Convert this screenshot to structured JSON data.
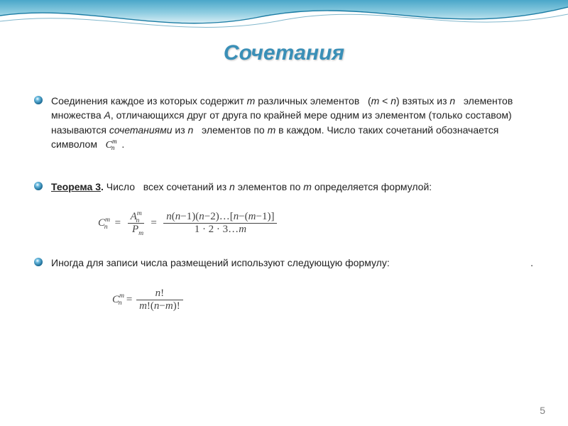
{
  "title": {
    "text": "Сочетания",
    "color": "#3a8fb7",
    "fontsize": 30
  },
  "bullets": [
    {
      "html": "Соединения каждое из которых содержит <span class='ital'>m</span> различных элементов &nbsp;&nbsp;(<span class='ital'>m</span> &lt; <span class='ital'>n</span>) взятых из <span class='ital'>n</span> &nbsp;&nbsp;элементов множества <span class='ital'>A</span>, отличающихся друг от друга по крайней мере одним из элементом (только составом) называются <span class='ital'>сочетаниями</span> из <span class='ital'>n</span> &nbsp;&nbsp;элементов по <span class='ital'>m</span> в каждом. Число таких сочетаний обозначается символом &nbsp;&nbsp;<span class='formula-inline'><span class='subsup'><span class='base'>C</span><span class='sup'>m</span><span class='sub'>n</span></span></span>&nbsp;&nbsp;."
    },
    {
      "html": "<span class='underline'><b>Теорема 3</b></span><b>.</b> Число &nbsp;&nbsp;всех сочетаний из <span class='ital'>n</span> элементов по <span class='ital'>m</span> определяется формулой:"
    },
    {
      "html": "Иногда для записи числа размещений используют следующую формулу:&nbsp;&nbsp;&nbsp;&nbsp;&nbsp;&nbsp;&nbsp;&nbsp;&nbsp;&nbsp;&nbsp;&nbsp;&nbsp;&nbsp;&nbsp;&nbsp;&nbsp;&nbsp;&nbsp;&nbsp;&nbsp;&nbsp;&nbsp;&nbsp;&nbsp;&nbsp;&nbsp;&nbsp;&nbsp;&nbsp;&nbsp;&nbsp;&nbsp;&nbsp;&nbsp;&nbsp;&nbsp;&nbsp;&nbsp;&nbsp;&nbsp;&nbsp;&nbsp;&nbsp;&nbsp;&nbsp;&nbsp;&nbsp;&nbsp;&nbsp;&nbsp;."
    }
  ],
  "formulas": {
    "f1_html": "<span class='subsup'><span class='base'>C</span><span class='sup'>m</span><span class='sub'>n</span></span>&nbsp;&nbsp;=&nbsp;&nbsp;<span class='frac'><span class='num'><span class='subsup'><span class='base'>A</span><span class='sup'>m</span><span class='sub'>n</span></span></span><span class='den'><span class='subsup'><span class='base'>P</span><span class='sub' style='left:0'>m</span></span></span></span>&nbsp;&nbsp;=&nbsp;&nbsp;<span class='frac'><span class='num'><span class='ital'>n</span>(<span class='ital'>n</span>&minus;1)(<span class='ital'>n</span>&minus;2)&hellip;[<span class='ital'>n</span>&minus;(<span class='ital'>m</span>&minus;1)]</span><span class='den'>1 &middot; 2 &middot; 3&hellip;<span class='ital'>m</span></span></span>",
    "f2_html": "<span class='subsup'><span class='base'>C</span><span class='sup'>m</span><span class='sub'>n</span></span> = <span class='frac'><span class='num'><span class='ital'>n</span>!</span><span class='den'><span class='ital'>m</span>!(<span class='ital'>n</span>&minus;<span class='ital'>m</span>)!</span></span>"
  },
  "page_number": "5",
  "wave": {
    "gradient_top": "#4aa7c9",
    "gradient_mid": "#8fcde1",
    "gradient_low": "#d8eef5",
    "stroke": "#1a7ba3"
  },
  "colors": {
    "text": "#222222",
    "formula": "#444444",
    "page_num": "#808080",
    "background": "#ffffff"
  }
}
